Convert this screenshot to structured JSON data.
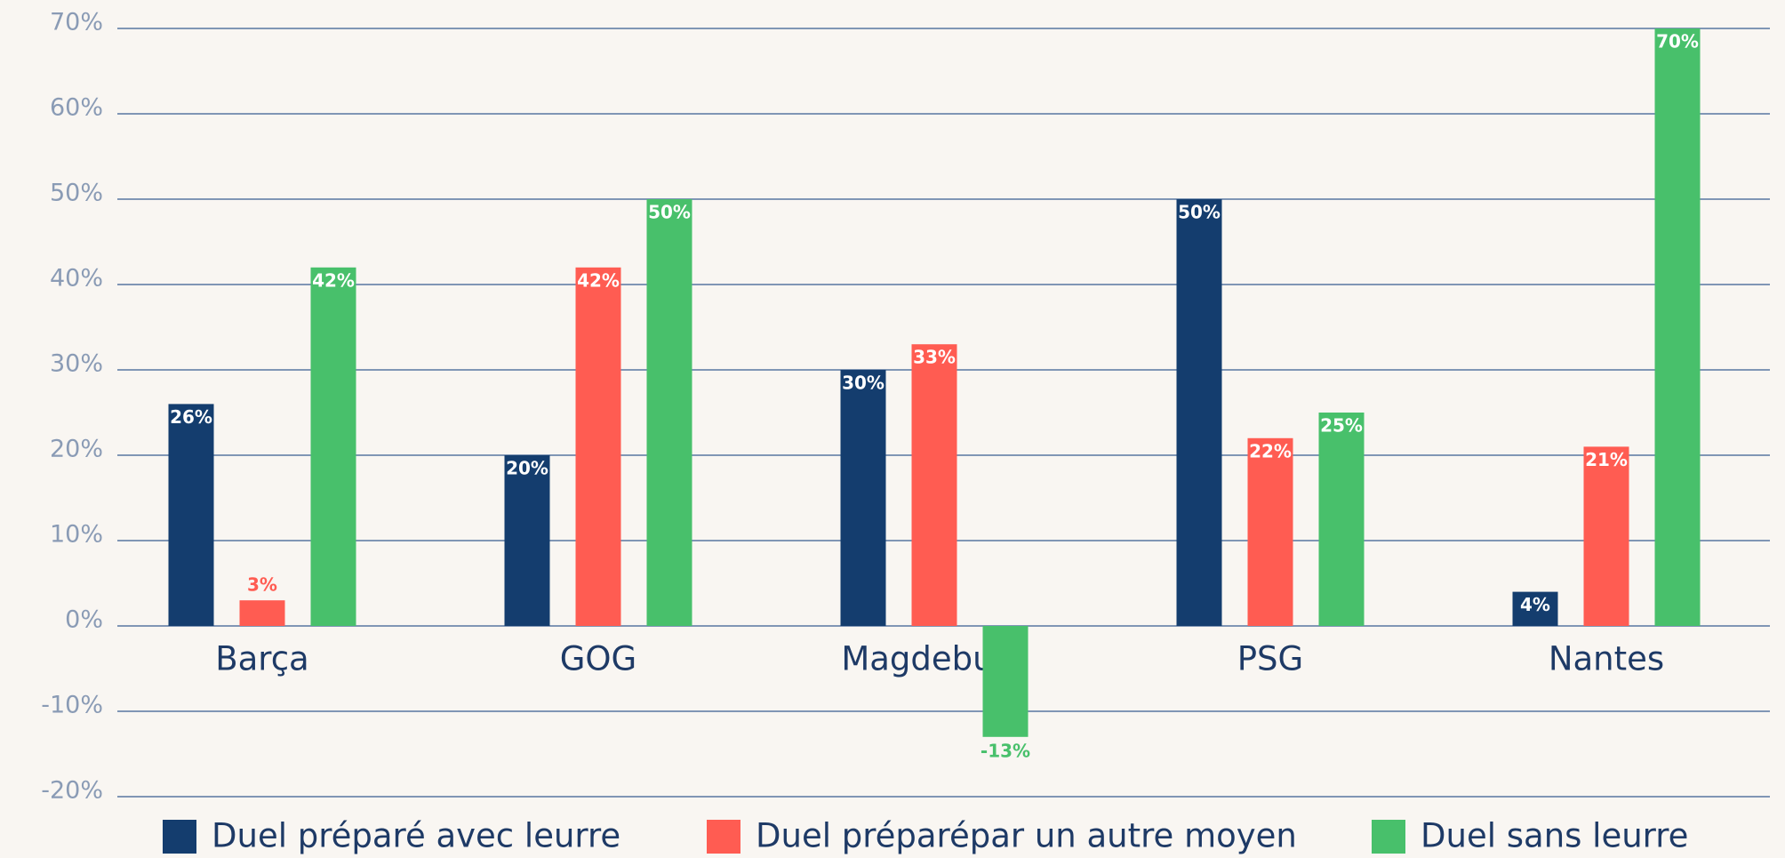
{
  "chart_data": {
    "type": "bar",
    "categories": [
      "Barça",
      "GOG",
      "Magdeburg",
      "PSG",
      "Nantes"
    ],
    "series": [
      {
        "name": "Duel préparé avec leurre",
        "color": "#143d6e",
        "values": [
          26,
          20,
          30,
          50,
          4
        ],
        "value_labels": [
          "26%",
          "20%",
          "30%",
          "50%",
          "4%"
        ]
      },
      {
        "name": "Duel préparépar un autre moyen",
        "color": "#ff5c52",
        "values": [
          3,
          42,
          33,
          22,
          21
        ],
        "value_labels": [
          "3%",
          "42%",
          "33%",
          "22%",
          "21%"
        ]
      },
      {
        "name": "Duel sans leurre",
        "color": "#48c06b",
        "values": [
          42,
          50,
          -13,
          25,
          70
        ],
        "value_labels": [
          "42%",
          "50%",
          "-13%",
          "25%",
          "70%"
        ]
      }
    ],
    "ylim": [
      -20,
      70
    ],
    "yticks": [
      {
        "value": -20,
        "label": "-20%"
      },
      {
        "value": -10,
        "label": "-10%"
      },
      {
        "value": 0,
        "label": "0%"
      },
      {
        "value": 10,
        "label": "10%"
      },
      {
        "value": 20,
        "label": "20%"
      },
      {
        "value": 30,
        "label": "30%"
      },
      {
        "value": 40,
        "label": "40%"
      },
      {
        "value": 50,
        "label": "50%"
      },
      {
        "value": 60,
        "label": "60%"
      },
      {
        "value": 70,
        "label": "70%"
      }
    ],
    "grid": true,
    "legend": "bottom"
  }
}
